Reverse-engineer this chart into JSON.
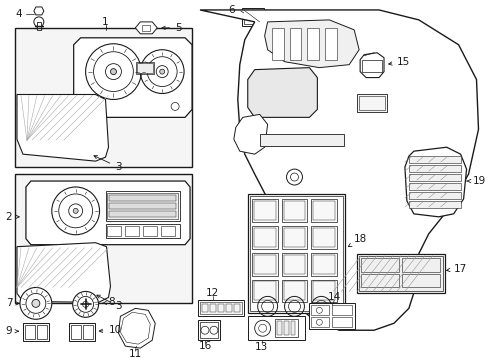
{
  "bg_color": "#ffffff",
  "line_color": "#1a1a1a",
  "fig_width": 4.89,
  "fig_height": 3.6,
  "dpi": 100,
  "font_size": 7.5,
  "font_size_sm": 6.5
}
